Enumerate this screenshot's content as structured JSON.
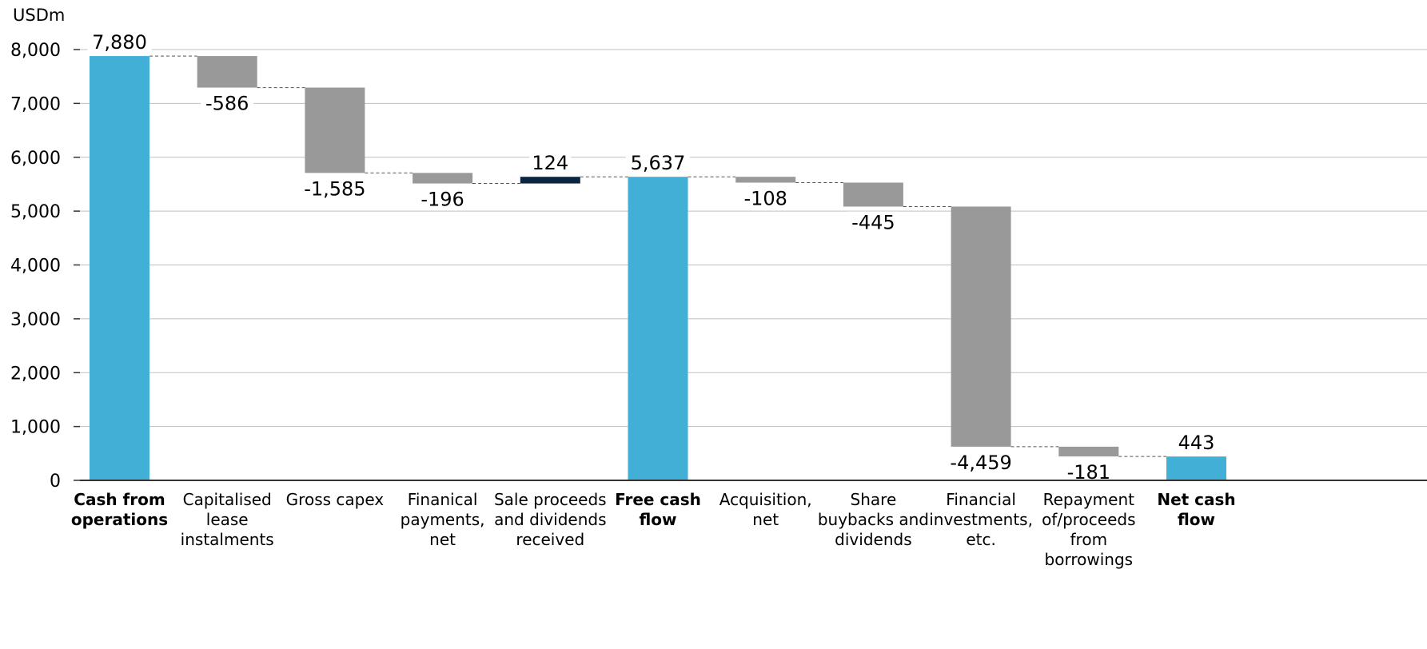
{
  "chart_data": {
    "type": "bar",
    "subtype": "waterfall",
    "title": "",
    "unit_label": "USDm",
    "ylim": [
      0,
      8000
    ],
    "y_ticks": [
      "0",
      "1,000",
      "2,000",
      "3,000",
      "4,000",
      "5,000",
      "6,000",
      "7,000",
      "8,000"
    ],
    "grid": true,
    "colors": {
      "total": "#41afd6",
      "decrease": "#999999",
      "increase": "#0b2540",
      "grid": "#bfbfbf",
      "axis": "#333333",
      "connector": "#555555"
    },
    "categories": [
      {
        "label_lines": [
          "Cash from",
          "operations"
        ],
        "bold": true,
        "kind": "total",
        "value": 7880,
        "value_label": "7,880"
      },
      {
        "label_lines": [
          "Capitalised",
          "lease",
          "instalments"
        ],
        "bold": false,
        "kind": "decrease",
        "value": -586,
        "value_label": "-586"
      },
      {
        "label_lines": [
          "Gross capex"
        ],
        "bold": false,
        "kind": "decrease",
        "value": -1585,
        "value_label": "-1,585"
      },
      {
        "label_lines": [
          "Finanical",
          "payments,",
          "net"
        ],
        "bold": false,
        "kind": "decrease",
        "value": -196,
        "value_label": "-196"
      },
      {
        "label_lines": [
          "Sale proceeds",
          "and dividends",
          "received"
        ],
        "bold": false,
        "kind": "increase",
        "value": 124,
        "value_label": "124"
      },
      {
        "label_lines": [
          "Free cash",
          "flow"
        ],
        "bold": true,
        "kind": "total",
        "value": 5637,
        "value_label": "5,637"
      },
      {
        "label_lines": [
          "Acquisition,",
          "net"
        ],
        "bold": false,
        "kind": "decrease",
        "value": -108,
        "value_label": "-108"
      },
      {
        "label_lines": [
          "Share",
          "buybacks and",
          "dividends"
        ],
        "bold": false,
        "kind": "decrease",
        "value": -445,
        "value_label": "-445"
      },
      {
        "label_lines": [
          "Financial",
          "investments,",
          "etc."
        ],
        "bold": false,
        "kind": "decrease",
        "value": -4459,
        "value_label": "-4,459"
      },
      {
        "label_lines": [
          "Repayment",
          "of/proceeds",
          "from",
          "borrowings"
        ],
        "bold": false,
        "kind": "decrease",
        "value": -181,
        "value_label": "-181"
      },
      {
        "label_lines": [
          "Net cash",
          "flow"
        ],
        "bold": true,
        "kind": "total",
        "value": 443,
        "value_label": "443"
      }
    ]
  }
}
